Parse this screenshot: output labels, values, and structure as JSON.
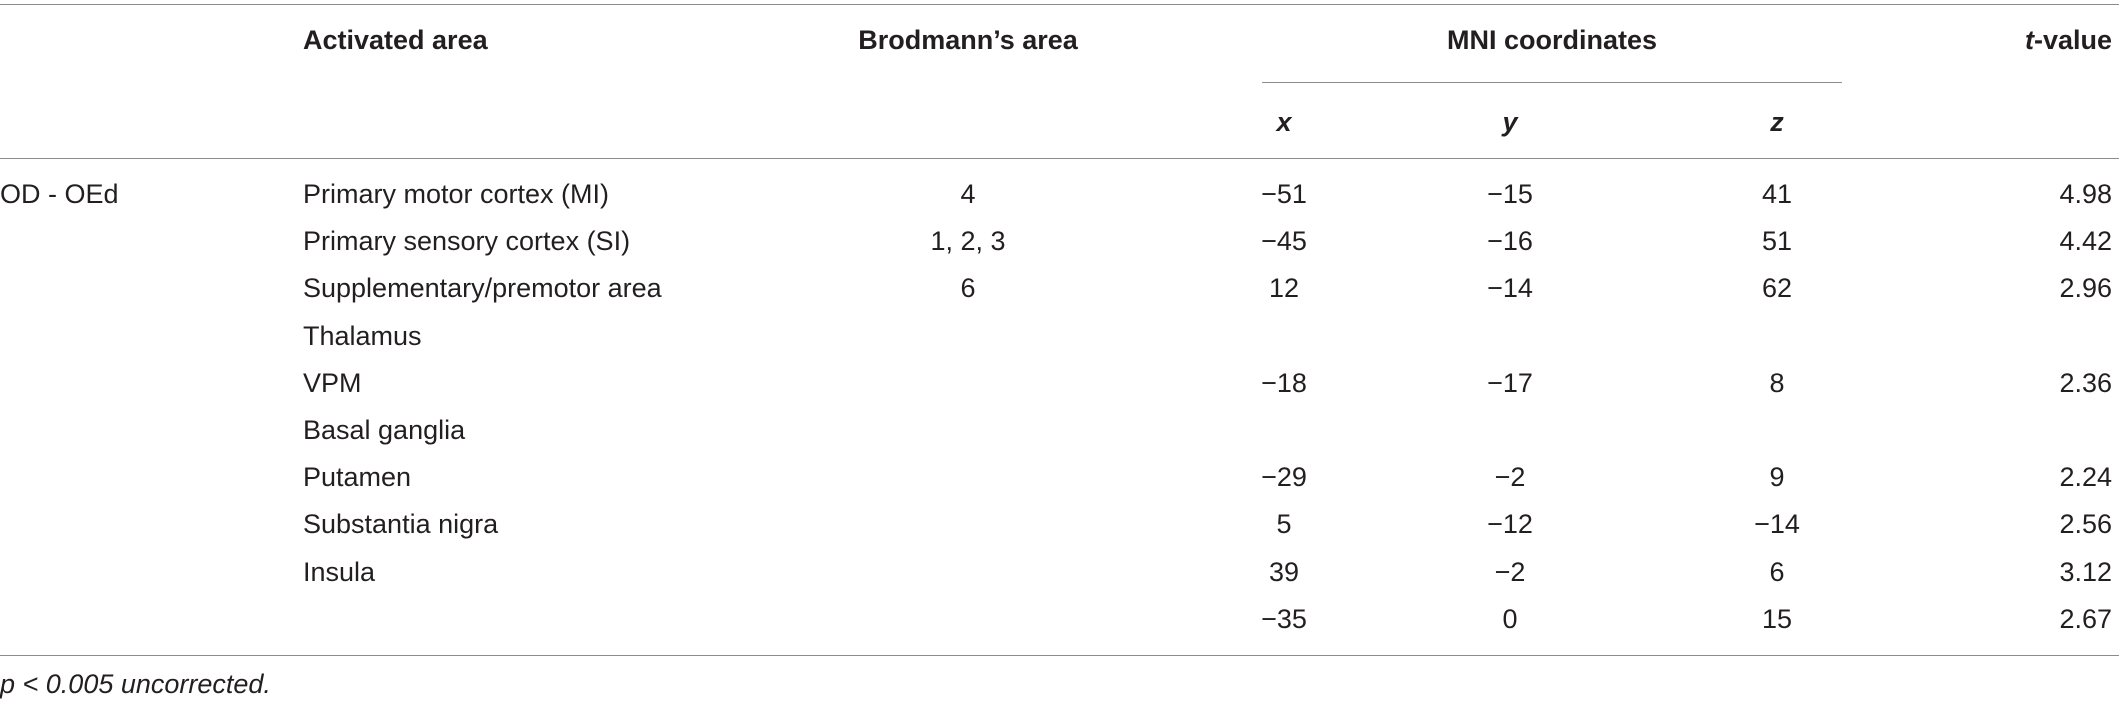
{
  "table": {
    "headers": {
      "activated_area": "Activated area",
      "brodmann": "Brodmann’s area",
      "mni": "MNI coordinates",
      "x": "x",
      "y": "y",
      "z": "z",
      "tvalue_prefix": "t",
      "tvalue_suffix": "-value"
    },
    "group_label": "OD - OEd",
    "rows": [
      {
        "area": "Primary motor cortex (MI)",
        "ba": "4",
        "x": "−51",
        "y": "−15",
        "z": "41",
        "t": "4.98"
      },
      {
        "area": "Primary sensory cortex (SI)",
        "ba": "1, 2, 3",
        "x": "−45",
        "y": "−16",
        "z": "51",
        "t": "4.42"
      },
      {
        "area": "Supplementary/premotor area",
        "ba": "6",
        "x": "12",
        "y": "−14",
        "z": "62",
        "t": "2.96"
      },
      {
        "area": "Thalamus",
        "ba": "",
        "x": "",
        "y": "",
        "z": "",
        "t": ""
      },
      {
        "area": "VPM",
        "ba": "",
        "x": "−18",
        "y": "−17",
        "z": "8",
        "t": "2.36"
      },
      {
        "area": "Basal ganglia",
        "ba": "",
        "x": "",
        "y": "",
        "z": "",
        "t": ""
      },
      {
        "area": "Putamen",
        "ba": "",
        "x": "−29",
        "y": "−2",
        "z": "9",
        "t": "2.24"
      },
      {
        "area": "Substantia nigra",
        "ba": "",
        "x": "5",
        "y": "−12",
        "z": "−14",
        "t": "2.56"
      },
      {
        "area": "Insula",
        "ba": "",
        "x": "39",
        "y": "−2",
        "z": "6",
        "t": "3.12"
      },
      {
        "area": "",
        "ba": "",
        "x": "−35",
        "y": "0",
        "z": "15",
        "t": "2.67"
      }
    ],
    "footnote": "p < 0.005 uncorrected."
  }
}
